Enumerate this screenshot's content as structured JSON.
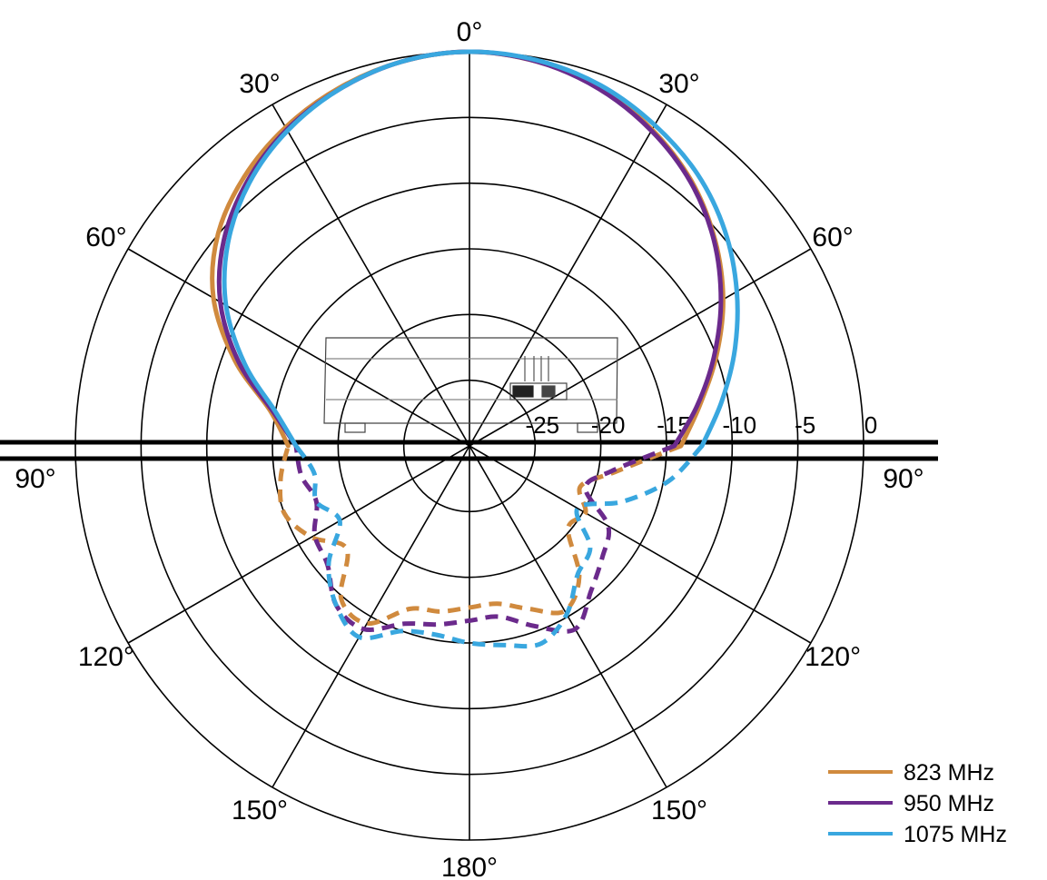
{
  "chart_data": {
    "type": "polar",
    "ring_labels": [
      "-25",
      "-20",
      "-15",
      "-10",
      "-5",
      "0"
    ],
    "rlim": [
      -30,
      0
    ],
    "angle_labels": [
      {
        "text": "0°",
        "angle": 0
      },
      {
        "text": "30°",
        "angle": -30
      },
      {
        "text": "30°",
        "angle": 30
      },
      {
        "text": "60°",
        "angle": -60
      },
      {
        "text": "60°",
        "angle": 60
      },
      {
        "text": "90°",
        "angle": -90
      },
      {
        "text": "90°",
        "angle": 90
      },
      {
        "text": "120°",
        "angle": -120
      },
      {
        "text": "120°",
        "angle": 120
      },
      {
        "text": "150°",
        "angle": -150
      },
      {
        "text": "150°",
        "angle": 150
      },
      {
        "text": "180°",
        "angle": 180
      }
    ],
    "grid": true,
    "legend_position": "bottom-right",
    "series": [
      {
        "name": "823 MHz",
        "color": "#d08a3e",
        "front": [
          [
            -90,
            -16.2
          ],
          [
            -80,
            -14.6
          ],
          [
            -70,
            -11.0
          ],
          [
            -60,
            -7.5
          ],
          [
            -50,
            -5.0
          ],
          [
            -40,
            -3.3
          ],
          [
            -30,
            -2.0
          ],
          [
            -20,
            -1.0
          ],
          [
            -10,
            -0.3
          ],
          [
            0,
            0
          ],
          [
            10,
            -0.3
          ],
          [
            20,
            -1.0
          ],
          [
            30,
            -2.2
          ],
          [
            40,
            -3.7
          ],
          [
            50,
            -5.6
          ],
          [
            60,
            -7.7
          ],
          [
            70,
            -10.0
          ],
          [
            80,
            -12.2
          ],
          [
            90,
            -13.9
          ]
        ],
        "back": [
          [
            90,
            -13.9
          ],
          [
            100,
            -18.7
          ],
          [
            110,
            -21.0
          ],
          [
            120,
            -19.8
          ],
          [
            130,
            -20.2
          ],
          [
            140,
            -17.0
          ],
          [
            150,
            -15.5
          ],
          [
            160,
            -16.8
          ],
          [
            170,
            -17.8
          ],
          [
            180,
            -17.7
          ],
          [
            190,
            -17.2
          ],
          [
            200,
            -16.8
          ],
          [
            210,
            -14.4
          ],
          [
            220,
            -14.8
          ],
          [
            230,
            -17.8
          ],
          [
            240,
            -16.1
          ],
          [
            250,
            -15.0
          ],
          [
            260,
            -15.4
          ],
          [
            270,
            -16.2
          ]
        ]
      },
      {
        "name": "950 MHz",
        "color": "#6b2a8c",
        "front": [
          [
            -90,
            -16.8
          ],
          [
            -80,
            -14.8
          ],
          [
            -70,
            -11.3
          ],
          [
            -60,
            -8.1
          ],
          [
            -50,
            -5.6
          ],
          [
            -40,
            -3.7
          ],
          [
            -30,
            -2.2
          ],
          [
            -20,
            -1.1
          ],
          [
            -10,
            -0.3
          ],
          [
            0,
            0
          ],
          [
            10,
            -0.3
          ],
          [
            20,
            -1.1
          ],
          [
            30,
            -2.3
          ],
          [
            40,
            -3.8
          ],
          [
            50,
            -5.7
          ],
          [
            60,
            -7.9
          ],
          [
            70,
            -10.2
          ],
          [
            80,
            -12.4
          ],
          [
            90,
            -14.4
          ]
        ],
        "back": [
          [
            90,
            -14.4
          ],
          [
            100,
            -19.0
          ],
          [
            110,
            -20.6
          ],
          [
            120,
            -17.8
          ],
          [
            130,
            -16.8
          ],
          [
            140,
            -15.6
          ],
          [
            150,
            -13.9
          ],
          [
            160,
            -15.4
          ],
          [
            170,
            -16.8
          ],
          [
            180,
            -16.7
          ],
          [
            190,
            -16.2
          ],
          [
            200,
            -15.6
          ],
          [
            210,
            -13.9
          ],
          [
            220,
            -14.2
          ],
          [
            230,
            -15.9
          ],
          [
            240,
            -16.4
          ],
          [
            250,
            -17.6
          ],
          [
            260,
            -17.0
          ],
          [
            270,
            -16.8
          ]
        ]
      },
      {
        "name": "1075 MHz",
        "color": "#39a7df",
        "front": [
          [
            -90,
            -16.8
          ],
          [
            -80,
            -15.0
          ],
          [
            -70,
            -11.8
          ],
          [
            -60,
            -8.6
          ],
          [
            -50,
            -6.0
          ],
          [
            -40,
            -3.9
          ],
          [
            -30,
            -2.3
          ],
          [
            -20,
            -1.1
          ],
          [
            -10,
            -0.3
          ],
          [
            0,
            0
          ],
          [
            10,
            -0.2
          ],
          [
            20,
            -0.8
          ],
          [
            30,
            -1.8
          ],
          [
            40,
            -3.0
          ],
          [
            50,
            -4.6
          ],
          [
            60,
            -6.5
          ],
          [
            70,
            -8.5
          ],
          [
            80,
            -10.5
          ],
          [
            90,
            -12.3
          ]
        ],
        "back": [
          [
            90,
            -12.3
          ],
          [
            100,
            -14.6
          ],
          [
            110,
            -17.6
          ],
          [
            120,
            -20.5
          ],
          [
            130,
            -18.0
          ],
          [
            140,
            -17.2
          ],
          [
            150,
            -15.2
          ],
          [
            160,
            -14.0
          ],
          [
            170,
            -14.6
          ],
          [
            180,
            -15.0
          ],
          [
            190,
            -15.4
          ],
          [
            200,
            -15.0
          ],
          [
            210,
            -13.2
          ],
          [
            220,
            -14.2
          ],
          [
            230,
            -16.0
          ],
          [
            240,
            -18.6
          ],
          [
            250,
            -17.6
          ],
          [
            260,
            -18.0
          ],
          [
            270,
            -16.8
          ]
        ]
      }
    ]
  }
}
